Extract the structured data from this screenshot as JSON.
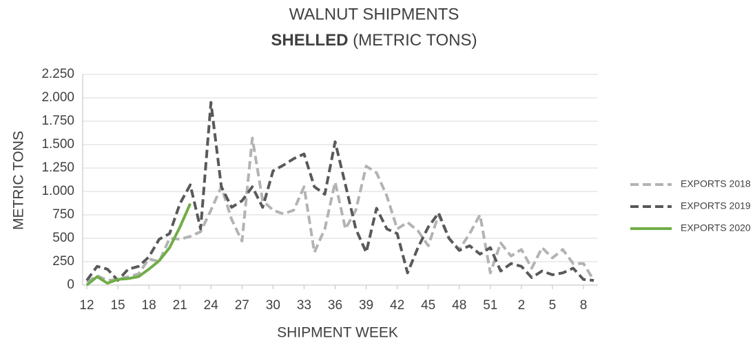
{
  "chart_data": {
    "type": "line",
    "title": "WALNUT SHIPMENTS",
    "subtitle": [
      "SHELLED",
      "(METRIC TONS)"
    ],
    "x_label": "SHIPMENT WEEK",
    "y_label": "METRIC TONS",
    "categories": [
      "12",
      null,
      null,
      "15",
      null,
      null,
      "18",
      null,
      null,
      "21",
      null,
      null,
      "24",
      null,
      null,
      "27",
      null,
      null,
      "30",
      null,
      null,
      "33",
      null,
      null,
      "36",
      null,
      null,
      "39",
      null,
      null,
      "42",
      null,
      null,
      "45",
      null,
      null,
      "48",
      null,
      null,
      "51",
      null,
      null,
      "2",
      null,
      null,
      "5",
      null,
      null,
      "8",
      null
    ],
    "series": [
      {
        "name": "EXPORTS 2018",
        "color": "#b3b3b3",
        "dashed": true,
        "values": [
          30,
          100,
          50,
          60,
          90,
          120,
          280,
          250,
          500,
          490,
          520,
          570,
          800,
          1050,
          700,
          470,
          1570,
          900,
          800,
          760,
          800,
          1050,
          350,
          600,
          1100,
          600,
          800,
          1270,
          1200,
          950,
          600,
          670,
          580,
          420,
          750,
          500,
          380,
          550,
          750,
          130,
          450,
          310,
          380,
          180,
          400,
          290,
          380,
          230,
          230,
          50
        ]
      },
      {
        "name": "EXPORTS 2019",
        "color": "#595959",
        "dashed": true,
        "values": [
          50,
          200,
          170,
          50,
          170,
          200,
          300,
          490,
          550,
          870,
          1070,
          600,
          1950,
          1050,
          830,
          900,
          1050,
          830,
          1220,
          1280,
          1350,
          1400,
          1050,
          970,
          1530,
          1070,
          600,
          350,
          820,
          600,
          550,
          130,
          400,
          620,
          770,
          500,
          370,
          420,
          330,
          400,
          150,
          230,
          200,
          80,
          150,
          110,
          130,
          180,
          60,
          50
        ]
      },
      {
        "name": "EXPORTS 2020",
        "color": "#70ad47",
        "dashed": false,
        "values": [
          0,
          90,
          20,
          60,
          70,
          90,
          170,
          260,
          400,
          620,
          870,
          null,
          null,
          null,
          null,
          null,
          null,
          null,
          null,
          null,
          null,
          null,
          null,
          null,
          null,
          null,
          null,
          null,
          null,
          null,
          null,
          null,
          null,
          null,
          null,
          null,
          null,
          null,
          null,
          null,
          null,
          null,
          null,
          null,
          null,
          null,
          null,
          null,
          null,
          null
        ]
      }
    ],
    "ylim": [
      0,
      2250
    ],
    "yticks": [
      0,
      250,
      500,
      750,
      {
        "value": 1000,
        "label": "1.000"
      },
      {
        "value": 1250,
        "label": "1.250"
      },
      {
        "value": 1500,
        "label": "1.500"
      },
      {
        "value": 1750,
        "label": "1.750"
      },
      {
        "value": 2000,
        "label": "2.000"
      },
      {
        "value": 2250,
        "label": "2.250"
      }
    ],
    "grid": true,
    "legend": "right"
  }
}
